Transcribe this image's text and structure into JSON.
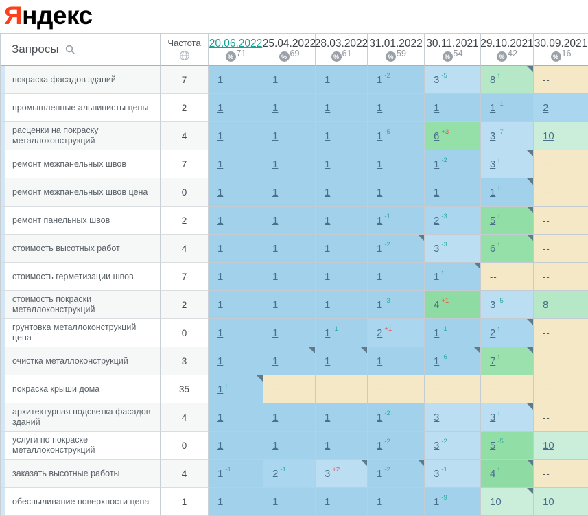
{
  "logo": {
    "first_letter": "Я",
    "rest": "ндекс"
  },
  "colors": {
    "accent_active_date": "#16a296",
    "delta_improve": "#2bab9d",
    "delta_decline": "#e05247",
    "logo_red": "#fc3f1d"
  },
  "position_colors": {
    "1": "#a2d1eb",
    "2": "#abd6ef",
    "3": "#bcdef3",
    "4": "#8edca3",
    "5": "#92dea7",
    "6": "#95dfa9",
    "7": "#9be1ae",
    "8": "#b6e8c7",
    "10": "#cbeeda",
    "--": "#f5e8c6"
  },
  "table": {
    "queries_header": "Запросы",
    "frequency_header": "Частота",
    "snapshots": [
      {
        "date": "20.06.2022",
        "percent": "71",
        "active": true
      },
      {
        "date": "25.04.2022",
        "percent": "69",
        "active": false
      },
      {
        "date": "28.03.2022",
        "percent": "61",
        "active": false
      },
      {
        "date": "31.01.2022",
        "percent": "59",
        "active": false
      },
      {
        "date": "30.11.2021",
        "percent": "54",
        "active": false
      },
      {
        "date": "29.10.2021",
        "percent": "42",
        "active": false
      },
      {
        "date": "30.09.2021",
        "percent": "16",
        "active": false
      }
    ],
    "rows": [
      {
        "query": "покраска фасадов зданий",
        "frequency": "7",
        "cells": [
          {
            "pos": "1"
          },
          {
            "pos": "1"
          },
          {
            "pos": "1"
          },
          {
            "pos": "1",
            "delta": "-2"
          },
          {
            "pos": "3",
            "delta": "-5"
          },
          {
            "pos": "8",
            "arrow": true,
            "marker": true
          },
          {
            "pos": "--"
          }
        ]
      },
      {
        "query": "промышленные альпинисты цены",
        "frequency": "2",
        "cells": [
          {
            "pos": "1"
          },
          {
            "pos": "1"
          },
          {
            "pos": "1"
          },
          {
            "pos": "1"
          },
          {
            "pos": "1"
          },
          {
            "pos": "1",
            "delta": "-1"
          },
          {
            "pos": "2"
          }
        ]
      },
      {
        "query": "расценки на покраску металлоконструкций",
        "frequency": "4",
        "cells": [
          {
            "pos": "1"
          },
          {
            "pos": "1"
          },
          {
            "pos": "1"
          },
          {
            "pos": "1",
            "delta": "-5"
          },
          {
            "pos": "6",
            "delta": "+3"
          },
          {
            "pos": "3",
            "delta": "-7"
          },
          {
            "pos": "10"
          }
        ]
      },
      {
        "query": "ремонт межпанельных швов",
        "frequency": "7",
        "cells": [
          {
            "pos": "1"
          },
          {
            "pos": "1"
          },
          {
            "pos": "1"
          },
          {
            "pos": "1"
          },
          {
            "pos": "1",
            "delta": "-2"
          },
          {
            "pos": "3",
            "arrow": true,
            "marker": true
          },
          {
            "pos": "--"
          }
        ]
      },
      {
        "query": "ремонт межпанельных швов цена",
        "frequency": "0",
        "cells": [
          {
            "pos": "1"
          },
          {
            "pos": "1"
          },
          {
            "pos": "1"
          },
          {
            "pos": "1"
          },
          {
            "pos": "1"
          },
          {
            "pos": "1",
            "arrow": true,
            "marker": true
          },
          {
            "pos": "--"
          }
        ]
      },
      {
        "query": "ремонт панельных швов",
        "frequency": "2",
        "cells": [
          {
            "pos": "1"
          },
          {
            "pos": "1"
          },
          {
            "pos": "1"
          },
          {
            "pos": "1",
            "delta": "-1"
          },
          {
            "pos": "2",
            "delta": "-3"
          },
          {
            "pos": "5",
            "arrow": true,
            "marker": true
          },
          {
            "pos": "--"
          }
        ]
      },
      {
        "query": "стоимость высотных работ",
        "frequency": "4",
        "cells": [
          {
            "pos": "1"
          },
          {
            "pos": "1"
          },
          {
            "pos": "1"
          },
          {
            "pos": "1",
            "delta": "-2",
            "marker": true
          },
          {
            "pos": "3",
            "delta": "-3"
          },
          {
            "pos": "6",
            "arrow": true,
            "marker": true
          },
          {
            "pos": "--"
          }
        ]
      },
      {
        "query": "стоимость герметизации швов",
        "frequency": "7",
        "cells": [
          {
            "pos": "1"
          },
          {
            "pos": "1"
          },
          {
            "pos": "1"
          },
          {
            "pos": "1"
          },
          {
            "pos": "1",
            "arrow": true,
            "marker": true
          },
          {
            "pos": "--"
          },
          {
            "pos": "--"
          }
        ]
      },
      {
        "query": "стоимость покраски металлоконструкций",
        "frequency": "2",
        "cells": [
          {
            "pos": "1"
          },
          {
            "pos": "1"
          },
          {
            "pos": "1"
          },
          {
            "pos": "1",
            "delta": "-3"
          },
          {
            "pos": "4",
            "delta": "+1"
          },
          {
            "pos": "3",
            "delta": "-5"
          },
          {
            "pos": "8"
          }
        ]
      },
      {
        "query": "грунтовка металлоконструкций цена",
        "frequency": "0",
        "cells": [
          {
            "pos": "1"
          },
          {
            "pos": "1"
          },
          {
            "pos": "1",
            "delta": "-1"
          },
          {
            "pos": "2",
            "delta": "+1"
          },
          {
            "pos": "1",
            "delta": "-1"
          },
          {
            "pos": "2",
            "arrow": true,
            "marker": true
          },
          {
            "pos": "--"
          }
        ]
      },
      {
        "query": "очистка металлоконструкций",
        "frequency": "3",
        "cells": [
          {
            "pos": "1"
          },
          {
            "pos": "1",
            "marker": true
          },
          {
            "pos": "1",
            "marker": true
          },
          {
            "pos": "1"
          },
          {
            "pos": "1",
            "delta": "-6",
            "marker": true
          },
          {
            "pos": "7",
            "arrow": true,
            "marker": true
          },
          {
            "pos": "--"
          }
        ]
      },
      {
        "query": "покраска крыши дома",
        "frequency": "35",
        "cells": [
          {
            "pos": "1",
            "arrow": true,
            "marker": true
          },
          {
            "pos": "--"
          },
          {
            "pos": "--"
          },
          {
            "pos": "--"
          },
          {
            "pos": "--"
          },
          {
            "pos": "--"
          },
          {
            "pos": "--"
          }
        ]
      },
      {
        "query": "архитектурная подсветка фасадов зданий",
        "frequency": "4",
        "cells": [
          {
            "pos": "1"
          },
          {
            "pos": "1"
          },
          {
            "pos": "1"
          },
          {
            "pos": "1",
            "delta": "-2"
          },
          {
            "pos": "3"
          },
          {
            "pos": "3",
            "arrow": true,
            "marker": true
          },
          {
            "pos": "--"
          }
        ]
      },
      {
        "query": "услуги по покраске металлоконструкций",
        "frequency": "0",
        "cells": [
          {
            "pos": "1"
          },
          {
            "pos": "1"
          },
          {
            "pos": "1"
          },
          {
            "pos": "1",
            "delta": "-2"
          },
          {
            "pos": "3",
            "delta": "-2"
          },
          {
            "pos": "5",
            "delta": "-5"
          },
          {
            "pos": "10"
          }
        ]
      },
      {
        "query": "заказать высотные работы",
        "frequency": "4",
        "cells": [
          {
            "pos": "1",
            "delta": "-1"
          },
          {
            "pos": "2",
            "delta": "-1"
          },
          {
            "pos": "3",
            "delta": "+2",
            "marker": true
          },
          {
            "pos": "1",
            "delta": "-2",
            "marker": true
          },
          {
            "pos": "3",
            "delta": "-1"
          },
          {
            "pos": "4",
            "arrow": true,
            "marker": true
          },
          {
            "pos": "--"
          }
        ]
      },
      {
        "query": "обеспыливание поверхности цена",
        "frequency": "1",
        "cells": [
          {
            "pos": "1"
          },
          {
            "pos": "1"
          },
          {
            "pos": "1"
          },
          {
            "pos": "1"
          },
          {
            "pos": "1",
            "delta": "-9"
          },
          {
            "pos": "10",
            "marker": true
          },
          {
            "pos": "10"
          }
        ]
      }
    ]
  }
}
